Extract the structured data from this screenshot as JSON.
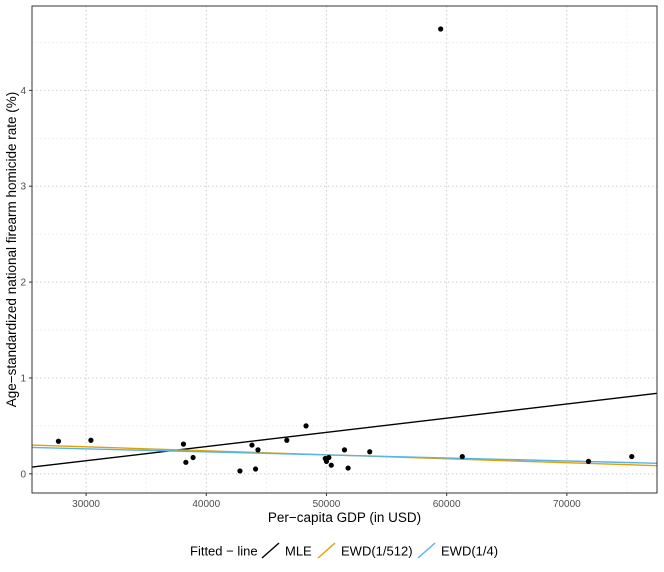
{
  "chart_data": {
    "type": "scatter",
    "xlabel": "Per−capita GDP (in USD)",
    "ylabel": "Age−standardized national firearm homicide rate (%)",
    "xlim": [
      25500,
      77500
    ],
    "ylim": [
      -0.2,
      4.88
    ],
    "x_ticks": [
      30000,
      40000,
      50000,
      60000,
      70000
    ],
    "x_tick_labels": [
      "30000",
      "40000",
      "50000",
      "60000",
      "70000"
    ],
    "y_ticks": [
      0,
      1,
      2,
      3,
      4
    ],
    "y_tick_labels": [
      "0",
      "1",
      "2",
      "3",
      "4"
    ],
    "grid": true,
    "grid_style": "dotted",
    "points": [
      {
        "x": 27700,
        "y": 0.34
      },
      {
        "x": 30400,
        "y": 0.35
      },
      {
        "x": 38100,
        "y": 0.31
      },
      {
        "x": 38300,
        "y": 0.12
      },
      {
        "x": 38900,
        "y": 0.17
      },
      {
        "x": 42800,
        "y": 0.03
      },
      {
        "x": 43800,
        "y": 0.3
      },
      {
        "x": 44100,
        "y": 0.05
      },
      {
        "x": 44300,
        "y": 0.25
      },
      {
        "x": 46700,
        "y": 0.35
      },
      {
        "x": 48300,
        "y": 0.5
      },
      {
        "x": 49900,
        "y": 0.16
      },
      {
        "x": 50000,
        "y": 0.13
      },
      {
        "x": 50200,
        "y": 0.17
      },
      {
        "x": 50400,
        "y": 0.09
      },
      {
        "x": 51500,
        "y": 0.25
      },
      {
        "x": 51800,
        "y": 0.06
      },
      {
        "x": 53600,
        "y": 0.23
      },
      {
        "x": 59500,
        "y": 4.64
      },
      {
        "x": 61300,
        "y": 0.18
      },
      {
        "x": 71800,
        "y": 0.13
      },
      {
        "x": 75400,
        "y": 0.18
      }
    ],
    "lines": [
      {
        "name": "MLE",
        "color": "#000000",
        "x": [
          25500,
          77500
        ],
        "y": [
          0.07,
          0.84
        ]
      },
      {
        "name": "EWD(1/512)",
        "color": "#E69F00",
        "x": [
          25500,
          77500
        ],
        "y": [
          0.3,
          0.085
        ]
      },
      {
        "name": "EWD(1/4)",
        "color": "#56B4E9",
        "x": [
          25500,
          77500
        ],
        "y": [
          0.275,
          0.11
        ]
      }
    ],
    "legend": {
      "title": "Fitted − line",
      "position": "bottom",
      "entries": [
        "MLE",
        "EWD(1/512)",
        "EWD(1/4)"
      ]
    }
  }
}
